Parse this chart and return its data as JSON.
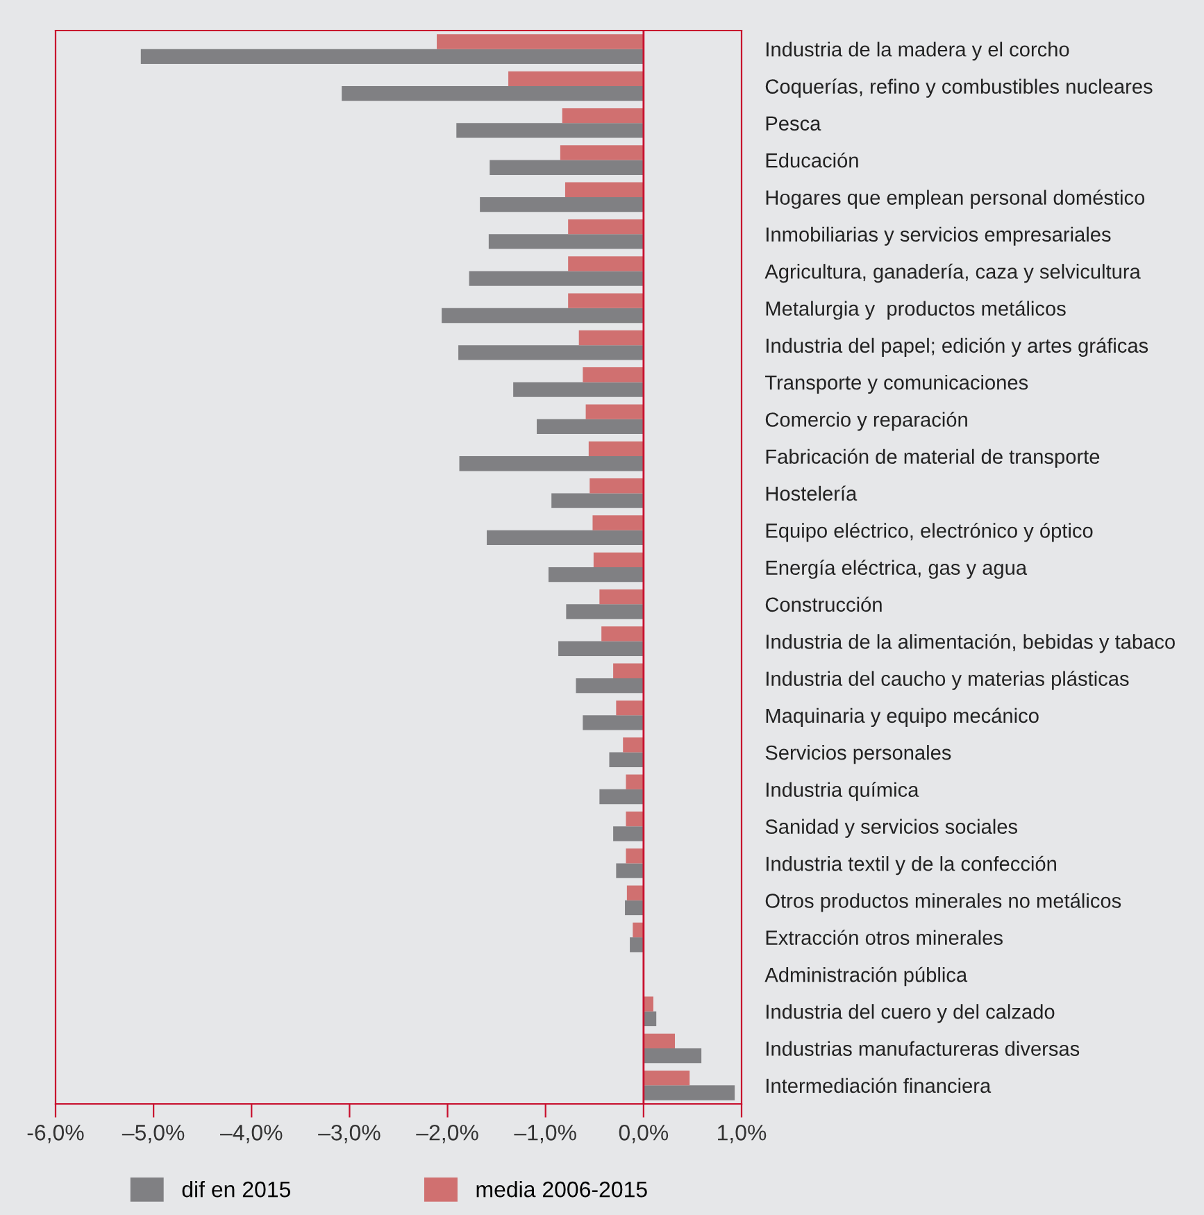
{
  "chart_data": {
    "type": "bar",
    "orientation": "horizontal",
    "categories": [
      "Industria de la madera y el corcho",
      "Coquerías, refino y combustibles nucleares",
      "Pesca",
      "Educación",
      "Hogares que emplean personal doméstico",
      "Inmobiliarias y servicios empresariales",
      "Agricultura, ganadería, caza y selvicultura",
      "Metalurgia y  productos metálicos",
      "Industria del papel; edición y artes gráficas",
      "Transporte y comunicaciones",
      "Comercio y reparación",
      "Fabricación de material de transporte",
      "Hostelería",
      "Equipo eléctrico, electrónico y óptico",
      "Energía eléctrica, gas y agua",
      "Construcción",
      "Industria de la alimentación, bebidas y tabaco",
      "Industria del caucho y materias plásticas",
      "Maquinaria y equipo mecánico",
      "Servicios personales",
      "Industria química",
      "Sanidad y servicios sociales",
      "Industria textil y de la confección",
      "Otros productos minerales no metálicos",
      "Extracción otros minerales",
      "Administración pública",
      "Industria del cuero y del calzado",
      "Industrias manufactureras diversas",
      "Intermediación financiera"
    ],
    "series": [
      {
        "name": "dif en 2015",
        "color": "#808083",
        "values": [
          -5.13,
          -3.08,
          -1.91,
          -1.57,
          -1.67,
          -1.58,
          -1.78,
          -2.06,
          -1.89,
          -1.33,
          -1.09,
          -1.88,
          -0.94,
          -1.6,
          -0.97,
          -0.79,
          -0.87,
          -0.69,
          -0.62,
          -0.35,
          -0.45,
          -0.31,
          -0.28,
          -0.19,
          -0.14,
          0,
          0.13,
          0.59,
          0.93
        ]
      },
      {
        "name": "media 2006-2015",
        "color": "#d07070",
        "values": [
          -2.11,
          -1.38,
          -0.83,
          -0.85,
          -0.8,
          -0.77,
          -0.77,
          -0.77,
          -0.66,
          -0.62,
          -0.59,
          -0.56,
          -0.55,
          -0.52,
          -0.51,
          -0.45,
          -0.43,
          -0.31,
          -0.28,
          -0.21,
          -0.18,
          -0.18,
          -0.18,
          -0.17,
          -0.11,
          0,
          0.1,
          0.32,
          0.47
        ]
      }
    ],
    "xlim": [
      -6,
      1
    ],
    "xticks": [
      {
        "value": -6,
        "label": "-6,0%"
      },
      {
        "value": -5,
        "label": "–5,0%"
      },
      {
        "value": -4,
        "label": "–4,0%"
      },
      {
        "value": -3,
        "label": "–3,0%"
      },
      {
        "value": -2,
        "label": "–2,0%"
      },
      {
        "value": -1,
        "label": "–1,0%"
      },
      {
        "value": 0,
        "label": "0,0%"
      },
      {
        "value": 1,
        "label": "1,0%"
      }
    ],
    "ref_lines": [
      {
        "axis": "x",
        "value": 0,
        "color": "#c8102e"
      }
    ],
    "grid": false,
    "legend": "bottom left"
  }
}
